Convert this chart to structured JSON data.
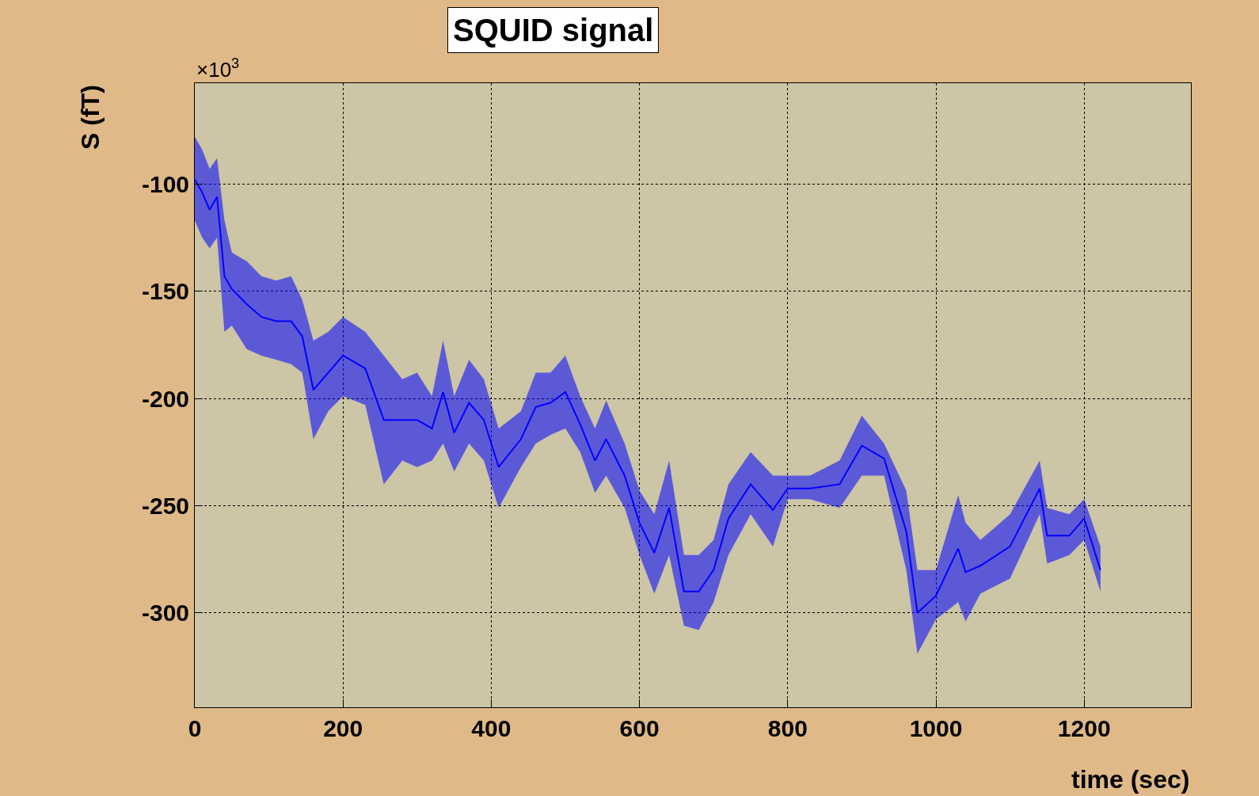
{
  "chart_data": {
    "type": "line",
    "title": "SQUID signal",
    "xlabel": "time (sec)",
    "ylabel": "S (fT)",
    "annotations": [
      "×10$^{3}$"
    ],
    "x": [
      0,
      10,
      20,
      30,
      40,
      50,
      70,
      90,
      110,
      130,
      145,
      160,
      180,
      200,
      230,
      255,
      280,
      300,
      320,
      335,
      350,
      370,
      390,
      410,
      440,
      460,
      480,
      500,
      520,
      540,
      555,
      580,
      600,
      620,
      640,
      660,
      680,
      700,
      720,
      750,
      780,
      800,
      830,
      870,
      900,
      930,
      960,
      975,
      1000,
      1030,
      1040,
      1060,
      1100,
      1140,
      1150,
      1180,
      1200,
      1222
    ],
    "series": [
      {
        "color": "#0000ff",
        "values": [
          -98,
          -104,
          -112,
          -106,
          -143,
          -149,
          -156,
          -162,
          -164,
          -164,
          -171,
          -196,
          -188,
          -180,
          -186,
          -210,
          -210,
          -210,
          -214,
          -197,
          -216,
          -202,
          -210,
          -232,
          -219,
          -204,
          -202,
          -197,
          -212,
          -229,
          -219,
          -236,
          -258,
          -272,
          -251,
          -290,
          -290,
          -280,
          -256,
          -240,
          -252,
          -242,
          -242,
          -240,
          -222,
          -228,
          -262,
          -300,
          -292,
          -270,
          -281,
          -278,
          -269,
          -242,
          -264,
          -264,
          -256,
          -280
        ],
        "lower": [
          -117,
          -125,
          -130,
          -125,
          -169,
          -166,
          -177,
          -180,
          -182,
          -184,
          -188,
          -219,
          -206,
          -199,
          -203,
          -240,
          -229,
          -232,
          -229,
          -221,
          -234,
          -221,
          -229,
          -251,
          -232,
          -221,
          -217,
          -214,
          -225,
          -244,
          -236,
          -251,
          -273,
          -291,
          -273,
          -306,
          -308,
          -295,
          -273,
          -254,
          -269,
          -247,
          -247,
          -251,
          -236,
          -236,
          -280,
          -319,
          -303,
          -295,
          -304,
          -291,
          -284,
          -254,
          -277,
          -273,
          -266,
          -290
        ],
        "upper": [
          -78,
          -84,
          -93,
          -88,
          -117,
          -132,
          -136,
          -143,
          -145,
          -143,
          -154,
          -173,
          -169,
          -162,
          -169,
          -180,
          -191,
          -188,
          -199,
          -173,
          -199,
          -182,
          -191,
          -214,
          -206,
          -188,
          -188,
          -180,
          -199,
          -214,
          -201,
          -221,
          -243,
          -254,
          -229,
          -273,
          -273,
          -266,
          -240,
          -225,
          -236,
          -236,
          -236,
          -229,
          -208,
          -221,
          -243,
          -280,
          -280,
          -245,
          -258,
          -266,
          -254,
          -229,
          -251,
          -254,
          -247,
          -269
        ]
      }
    ],
    "xlim": [
      0,
      1344
    ],
    "ylim": [
      -344,
      -53
    ],
    "xticks": [
      0,
      200,
      400,
      600,
      800,
      1000,
      1200
    ],
    "yticks": [
      -100,
      -150,
      -200,
      -250,
      -300
    ],
    "grid": true,
    "line_style": "solid",
    "marker": "none"
  }
}
